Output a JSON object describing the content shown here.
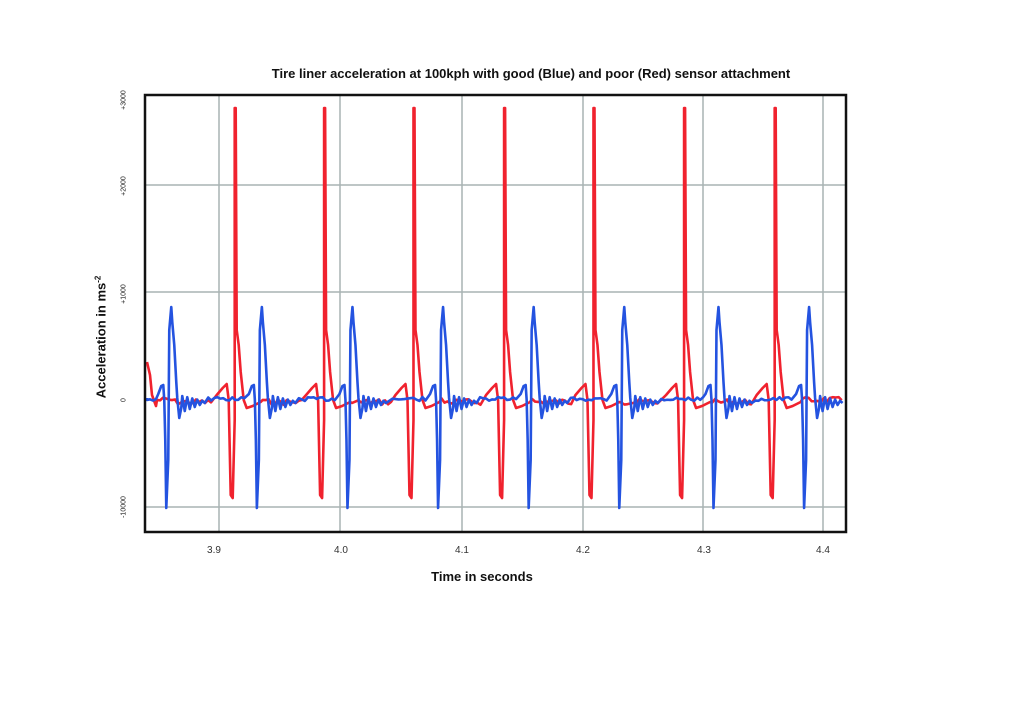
{
  "chart_data": {
    "type": "line",
    "title": "Tire liner acceleration at 100kph with good (Blue) and  poor (Red) sensor attachment",
    "xlabel": "Time in seconds",
    "ylabel": "Acceleration in ms",
    "ylabel_superscript": "-2",
    "x_ticks": [
      "3.9",
      "4.0",
      "4.1",
      "4.2",
      "4.3",
      "4.4"
    ],
    "y_ticks": [
      "-10000",
      "0",
      "+1000",
      "+2000",
      "+3000"
    ],
    "xlim": [
      3.84,
      4.42
    ],
    "ylim": [
      -1200,
      3000
    ],
    "grid": true,
    "legend": "none (described in title: Blue = good attachment, Red = poor attachment)",
    "series": [
      {
        "name": "Good sensor attachment (Blue)",
        "color": "#2453e0",
        "pulse_times_s": [
          3.858,
          3.933,
          4.008,
          4.083,
          4.158,
          4.233,
          4.311,
          4.386
        ],
        "peak_positive": 850,
        "peak_negative": -1000,
        "baseline": 20
      },
      {
        "name": "Poor sensor attachment (Red)",
        "color": "#f0222e",
        "pulse_times_s": [
          3.913,
          3.987,
          4.061,
          4.136,
          4.21,
          4.285,
          4.36
        ],
        "peak_positive": 2800,
        "peak_negative": -900,
        "baseline": 0
      }
    ]
  },
  "colors": {
    "blue": "#2453e0",
    "red": "#f0222e",
    "grid": "#a9b3b3",
    "frame": "#111111"
  }
}
